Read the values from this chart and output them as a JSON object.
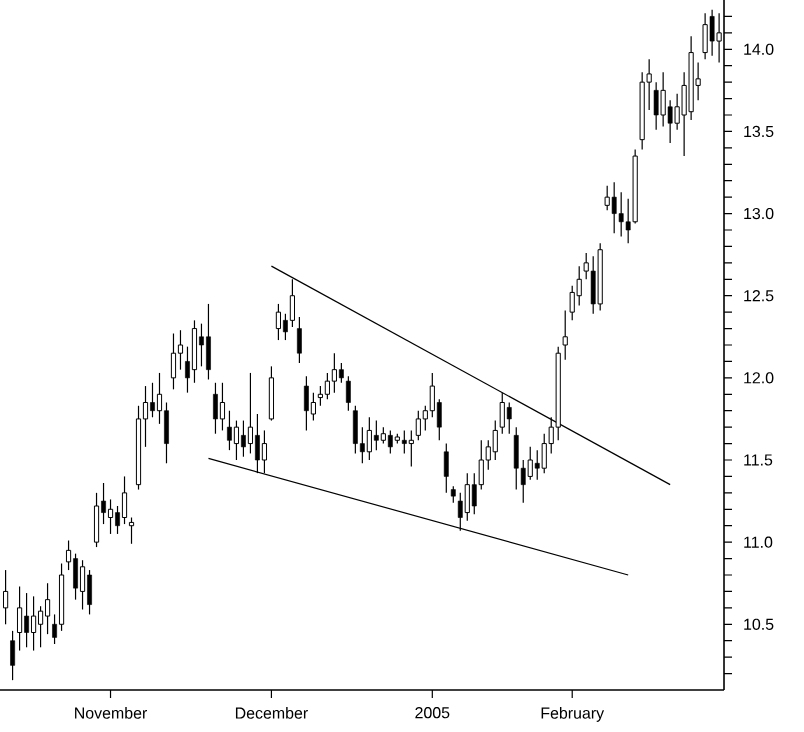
{
  "chart_data": {
    "type": "candlestick",
    "color": "#000000",
    "categories": [
      null,
      null,
      null,
      null,
      null,
      null,
      null,
      null,
      null,
      null,
      null,
      null,
      null,
      null,
      null,
      "November",
      null,
      null,
      null,
      null,
      null,
      null,
      null,
      null,
      null,
      null,
      null,
      null,
      null,
      null,
      null,
      null,
      null,
      null,
      null,
      null,
      null,
      null,
      "December",
      null,
      null,
      null,
      null,
      null,
      null,
      null,
      null,
      null,
      null,
      null,
      null,
      null,
      null,
      null,
      null,
      null,
      null,
      null,
      null,
      null,
      null,
      "2005",
      null,
      null,
      null,
      null,
      null,
      null,
      null,
      null,
      null,
      null,
      null,
      null,
      null,
      null,
      null,
      null,
      null,
      null,
      null,
      "February",
      null,
      null,
      null,
      null,
      null,
      null,
      null,
      null,
      null,
      null,
      null,
      null,
      null,
      null,
      null,
      null,
      null,
      null,
      null,
      null,
      null
    ],
    "ohlc": [
      [
        10.6,
        10.83,
        10.5,
        10.7
      ],
      [
        10.4,
        10.46,
        10.16,
        10.25
      ],
      [
        10.45,
        10.73,
        10.34,
        10.6
      ],
      [
        10.55,
        10.69,
        10.36,
        10.45
      ],
      [
        10.45,
        10.67,
        10.34,
        10.55
      ],
      [
        10.5,
        10.61,
        10.36,
        10.58
      ],
      [
        10.55,
        10.75,
        10.44,
        10.65
      ],
      [
        10.5,
        10.56,
        10.38,
        10.42
      ],
      [
        10.5,
        10.87,
        10.46,
        10.8
      ],
      [
        10.88,
        11.01,
        10.83,
        10.95
      ],
      [
        10.9,
        10.93,
        10.65,
        10.72
      ],
      [
        10.7,
        10.89,
        10.59,
        10.85
      ],
      [
        10.8,
        10.83,
        10.56,
        10.62
      ],
      [
        11.0,
        11.3,
        10.97,
        11.22
      ],
      [
        11.25,
        11.36,
        11.11,
        11.18
      ],
      [
        11.15,
        11.26,
        11.05,
        11.2
      ],
      [
        11.18,
        11.22,
        11.05,
        11.1
      ],
      [
        11.15,
        11.4,
        11.11,
        11.3
      ],
      [
        11.1,
        11.15,
        10.99,
        11.12
      ],
      [
        11.35,
        11.83,
        11.32,
        11.75
      ],
      [
        11.75,
        11.95,
        11.58,
        11.85
      ],
      [
        11.85,
        11.97,
        11.76,
        11.8
      ],
      [
        11.8,
        12.03,
        11.72,
        11.9
      ],
      [
        11.8,
        11.85,
        11.48,
        11.6
      ],
      [
        12.0,
        12.27,
        11.93,
        12.15
      ],
      [
        12.15,
        12.29,
        12.05,
        12.2
      ],
      [
        12.1,
        12.19,
        11.91,
        12.0
      ],
      [
        12.05,
        12.35,
        11.97,
        12.3
      ],
      [
        12.25,
        12.33,
        12.07,
        12.2
      ],
      [
        12.25,
        12.45,
        11.99,
        12.05
      ],
      [
        11.9,
        11.97,
        11.66,
        11.75
      ],
      [
        11.75,
        11.97,
        11.68,
        11.85
      ],
      [
        11.7,
        11.8,
        11.56,
        11.62
      ],
      [
        11.6,
        11.74,
        11.5,
        11.7
      ],
      [
        11.65,
        11.74,
        11.52,
        11.58
      ],
      [
        11.6,
        12.03,
        11.54,
        11.7
      ],
      [
        11.65,
        11.78,
        11.42,
        11.5
      ],
      [
        11.5,
        11.68,
        11.42,
        11.6
      ],
      [
        11.75,
        12.07,
        11.74,
        12.0
      ],
      [
        12.3,
        12.45,
        12.23,
        12.4
      ],
      [
        12.35,
        12.39,
        12.23,
        12.28
      ],
      [
        12.35,
        12.6,
        12.31,
        12.5
      ],
      [
        12.3,
        12.37,
        12.09,
        12.15
      ],
      [
        11.95,
        12.01,
        11.68,
        11.8
      ],
      [
        11.78,
        11.91,
        11.74,
        11.85
      ],
      [
        11.88,
        11.95,
        11.83,
        11.9
      ],
      [
        11.9,
        12.03,
        11.87,
        11.98
      ],
      [
        11.98,
        12.15,
        11.91,
        12.05
      ],
      [
        12.05,
        12.09,
        11.97,
        12.0
      ],
      [
        11.98,
        12.01,
        11.8,
        11.85
      ],
      [
        11.8,
        11.83,
        11.54,
        11.6
      ],
      [
        11.6,
        11.7,
        11.48,
        11.55
      ],
      [
        11.55,
        11.76,
        11.5,
        11.68
      ],
      [
        11.65,
        11.74,
        11.56,
        11.62
      ],
      [
        11.62,
        11.7,
        11.6,
        11.66
      ],
      [
        11.65,
        11.68,
        11.54,
        11.58
      ],
      [
        11.62,
        11.66,
        11.6,
        11.64
      ],
      [
        11.62,
        11.68,
        11.54,
        11.6
      ],
      [
        11.6,
        11.68,
        11.46,
        11.62
      ],
      [
        11.65,
        11.8,
        11.62,
        11.75
      ],
      [
        11.75,
        11.83,
        11.68,
        11.8
      ],
      [
        11.8,
        12.03,
        11.76,
        11.95
      ],
      [
        11.85,
        11.87,
        11.62,
        11.7
      ],
      [
        11.55,
        11.6,
        11.3,
        11.4
      ],
      [
        11.32,
        11.34,
        11.24,
        11.28
      ],
      [
        11.25,
        11.3,
        11.07,
        11.15
      ],
      [
        11.18,
        11.42,
        11.13,
        11.35
      ],
      [
        11.35,
        11.42,
        11.17,
        11.22
      ],
      [
        11.35,
        11.62,
        11.32,
        11.5
      ],
      [
        11.5,
        11.62,
        11.44,
        11.58
      ],
      [
        11.55,
        11.74,
        11.5,
        11.68
      ],
      [
        11.7,
        11.91,
        11.66,
        11.85
      ],
      [
        11.82,
        11.85,
        11.66,
        11.75
      ],
      [
        11.65,
        11.7,
        11.32,
        11.45
      ],
      [
        11.45,
        11.5,
        11.24,
        11.35
      ],
      [
        11.4,
        11.58,
        11.38,
        11.5
      ],
      [
        11.48,
        11.56,
        11.38,
        11.45
      ],
      [
        11.45,
        11.66,
        11.42,
        11.6
      ],
      [
        11.6,
        11.76,
        11.54,
        11.7
      ],
      [
        11.7,
        12.19,
        11.62,
        12.15
      ],
      [
        12.2,
        12.41,
        12.11,
        12.25
      ],
      [
        12.4,
        12.56,
        12.35,
        12.52
      ],
      [
        12.5,
        12.68,
        12.44,
        12.6
      ],
      [
        12.65,
        12.76,
        12.6,
        12.7
      ],
      [
        12.65,
        12.74,
        12.39,
        12.45
      ],
      [
        12.45,
        12.82,
        12.41,
        12.78
      ],
      [
        13.05,
        13.17,
        13.02,
        13.1
      ],
      [
        13.1,
        13.19,
        12.88,
        13.0
      ],
      [
        13.0,
        13.13,
        12.86,
        12.95
      ],
      [
        12.95,
        13.09,
        12.82,
        12.9
      ],
      [
        12.95,
        13.39,
        12.94,
        13.35
      ],
      [
        13.45,
        13.86,
        13.39,
        13.8
      ],
      [
        13.8,
        13.94,
        13.63,
        13.85
      ],
      [
        13.75,
        13.8,
        13.51,
        13.6
      ],
      [
        13.6,
        13.86,
        13.53,
        13.75
      ],
      [
        13.65,
        13.69,
        13.43,
        13.55
      ],
      [
        13.55,
        13.73,
        13.51,
        13.65
      ],
      [
        13.6,
        13.86,
        13.35,
        13.78
      ],
      [
        13.62,
        14.08,
        13.57,
        13.98
      ],
      [
        13.78,
        13.92,
        13.69,
        13.82
      ],
      [
        13.98,
        14.22,
        13.94,
        14.15
      ],
      [
        14.2,
        14.24,
        13.96,
        14.05
      ],
      [
        14.05,
        14.22,
        13.92,
        14.1
      ]
    ],
    "series": [
      {
        "type": "line",
        "color": "#000000",
        "values": [
          null,
          null,
          null,
          null,
          null,
          null,
          null,
          null,
          null,
          null,
          null,
          null,
          null,
          null,
          null,
          null,
          null,
          null,
          null,
          null,
          null,
          null,
          null,
          null,
          null,
          null,
          null,
          null,
          null,
          null,
          null,
          null,
          null,
          null,
          null,
          null,
          null,
          null,
          12.68,
          null,
          null,
          null,
          null,
          null,
          null,
          null,
          null,
          null,
          null,
          null,
          null,
          null,
          null,
          null,
          null,
          null,
          null,
          null,
          null,
          null,
          null,
          null,
          null,
          null,
          null,
          null,
          null,
          null,
          null,
          null,
          null,
          null,
          null,
          null,
          null,
          null,
          null,
          null,
          null,
          null,
          null,
          null,
          null,
          null,
          null,
          null,
          null,
          null,
          null,
          null,
          null,
          null,
          null,
          null,
          null,
          11.35,
          null,
          null,
          null,
          null,
          null,
          null,
          null
        ]
      },
      {
        "type": "line",
        "color": "#000000",
        "values": [
          null,
          null,
          null,
          null,
          null,
          null,
          null,
          null,
          null,
          null,
          null,
          null,
          null,
          null,
          null,
          null,
          null,
          null,
          null,
          null,
          null,
          null,
          null,
          null,
          null,
          null,
          null,
          null,
          null,
          11.51,
          null,
          null,
          null,
          null,
          null,
          null,
          null,
          null,
          null,
          null,
          null,
          null,
          null,
          null,
          null,
          null,
          null,
          null,
          null,
          null,
          null,
          null,
          null,
          null,
          null,
          null,
          null,
          null,
          null,
          null,
          null,
          null,
          null,
          null,
          null,
          null,
          null,
          null,
          null,
          null,
          null,
          null,
          null,
          null,
          null,
          null,
          null,
          null,
          null,
          null,
          null,
          null,
          null,
          null,
          null,
          null,
          null,
          null,
          null,
          10.8,
          null,
          null,
          null,
          null,
          null,
          null,
          null,
          null,
          null,
          null,
          null,
          null,
          null
        ]
      }
    ],
    "ylim": [
      10.1,
      14.3
    ],
    "yticks": [
      {
        "value": 10.2,
        "label": null
      },
      {
        "value": 10.3,
        "label": null
      },
      {
        "value": 10.4,
        "label": null
      },
      {
        "value": 10.5,
        "label": "10.5"
      },
      {
        "value": 10.6,
        "label": null
      },
      {
        "value": 10.7,
        "label": null
      },
      {
        "value": 10.8,
        "label": null
      },
      {
        "value": 10.9,
        "label": null
      },
      {
        "value": 11.0,
        "label": "11.0"
      },
      {
        "value": 11.1,
        "label": null
      },
      {
        "value": 11.2,
        "label": null
      },
      {
        "value": 11.3,
        "label": null
      },
      {
        "value": 11.4,
        "label": null
      },
      {
        "value": 11.5,
        "label": "11.5"
      },
      {
        "value": 11.6,
        "label": null
      },
      {
        "value": 11.7,
        "label": null
      },
      {
        "value": 11.8,
        "label": null
      },
      {
        "value": 11.9,
        "label": null
      },
      {
        "value": 12.0,
        "label": "12.0"
      },
      {
        "value": 12.1,
        "label": null
      },
      {
        "value": 12.2,
        "label": null
      },
      {
        "value": 12.3,
        "label": null
      },
      {
        "value": 12.4,
        "label": null
      },
      {
        "value": 12.5,
        "label": "12.5"
      },
      {
        "value": 12.6,
        "label": null
      },
      {
        "value": 12.7,
        "label": null
      },
      {
        "value": 12.8,
        "label": null
      },
      {
        "value": 12.9,
        "label": null
      },
      {
        "value": 13.0,
        "label": "13.0"
      },
      {
        "value": 13.1,
        "label": null
      },
      {
        "value": 13.2,
        "label": null
      },
      {
        "value": 13.3,
        "label": null
      },
      {
        "value": 13.4,
        "label": null
      },
      {
        "value": 13.5,
        "label": "13.5"
      },
      {
        "value": 13.6,
        "label": null
      },
      {
        "value": 13.7,
        "label": null
      },
      {
        "value": 13.8,
        "label": null
      },
      {
        "value": 13.9,
        "label": null
      },
      {
        "value": 14.0,
        "label": "14.0"
      },
      {
        "value": 14.1,
        "label": null
      },
      {
        "value": 14.2,
        "label": null
      }
    ]
  }
}
